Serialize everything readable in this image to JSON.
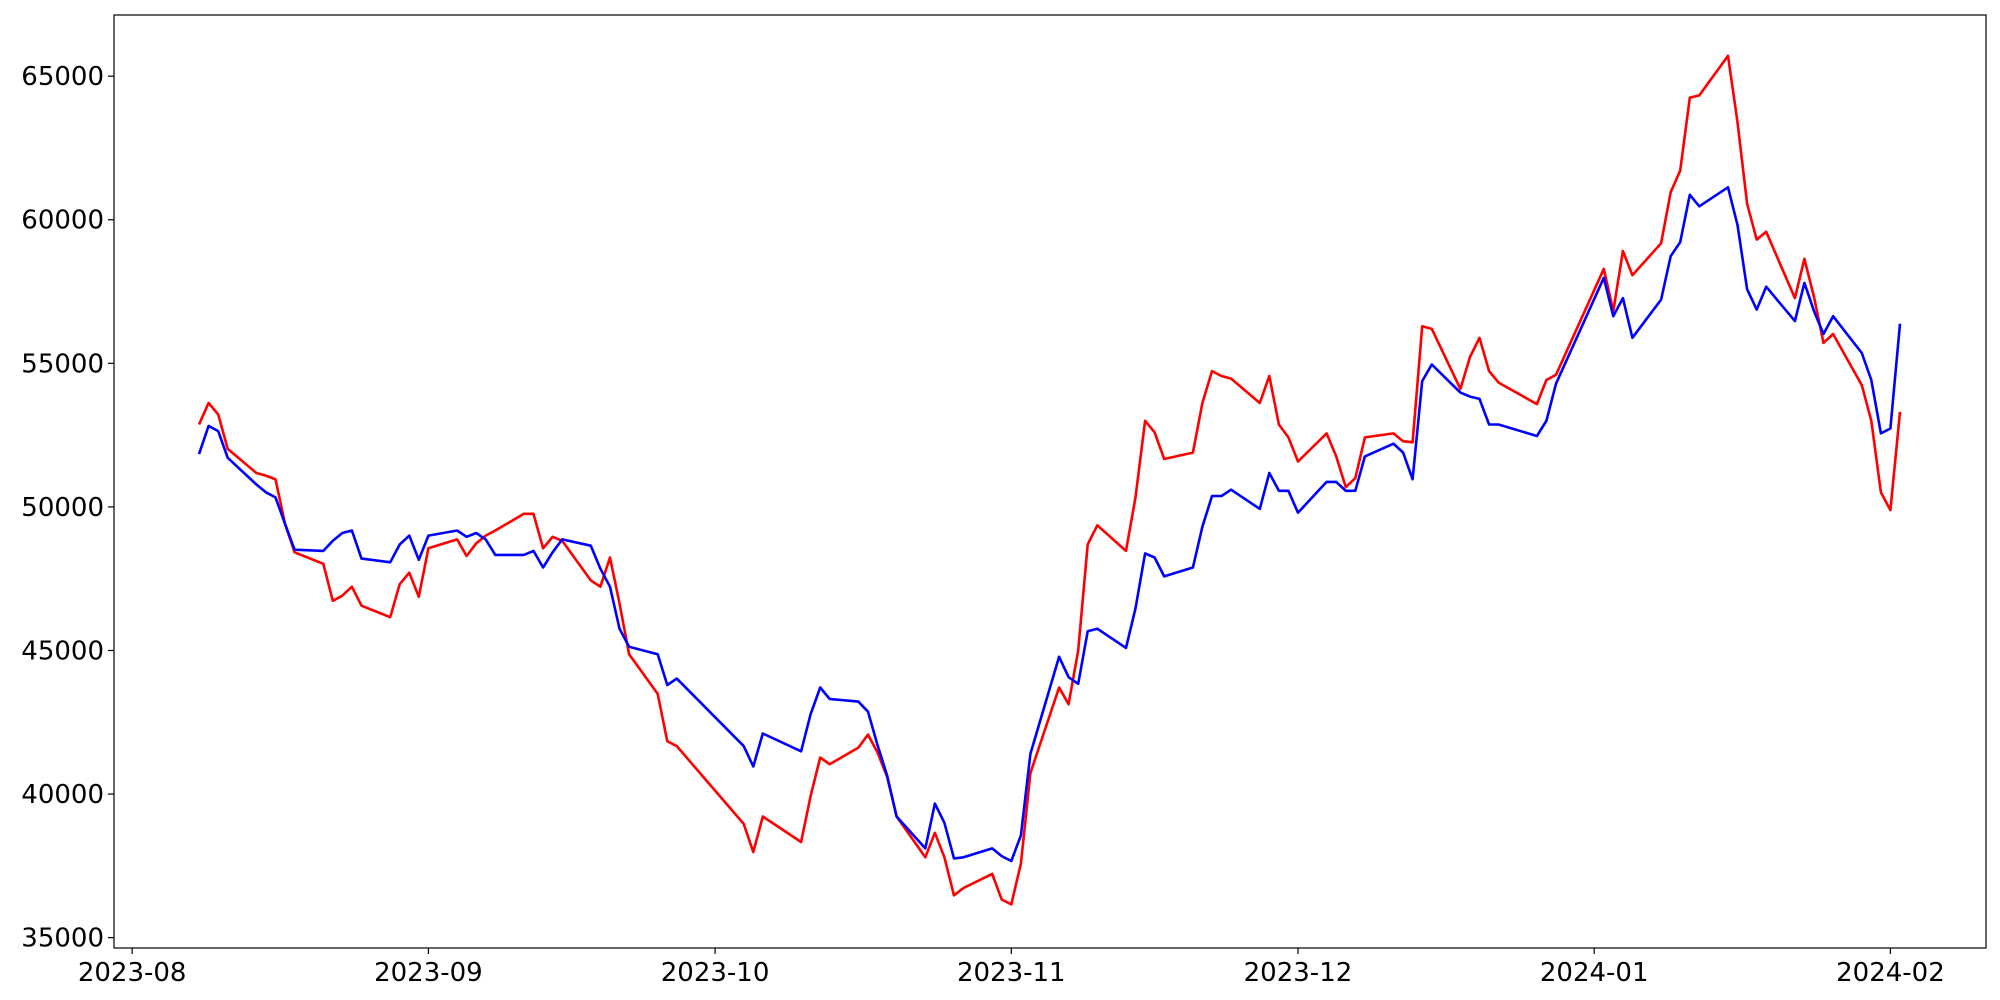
{
  "chart_data": {
    "type": "line",
    "x": [
      19577,
      19578,
      19579,
      19580,
      19583,
      19584,
      19585,
      19586,
      19587,
      19590,
      19591,
      19592,
      19593,
      19594,
      19597,
      19598,
      19599,
      19600,
      19601,
      19604,
      19605,
      19606,
      19607,
      19608,
      19611,
      19612,
      19613,
      19614,
      19615,
      19618,
      19619,
      19620,
      19621,
      19622,
      19625,
      19626,
      19627,
      19634,
      19635,
      19636,
      19640,
      19641,
      19642,
      19643,
      19646,
      19647,
      19648,
      19649,
      19650,
      19653,
      19654,
      19655,
      19656,
      19657,
      19660,
      19661,
      19662,
      19663,
      19664,
      19667,
      19668,
      19669,
      19670,
      19671,
      19674,
      19675,
      19676,
      19677,
      19678,
      19681,
      19682,
      19683,
      19684,
      19685,
      19688,
      19689,
      19690,
      19691,
      19692,
      19695,
      19696,
      19697,
      19698,
      19699,
      19702,
      19703,
      19704,
      19705,
      19706,
      19709,
      19710,
      19711,
      19712,
      19713,
      19717,
      19718,
      19719,
      19724,
      19725,
      19726,
      19727,
      19730,
      19731,
      19732,
      19733,
      19734,
      19737,
      19738,
      19739,
      19740,
      19741,
      19744,
      19745,
      19746,
      19747,
      19748,
      19751,
      19752,
      19753,
      19754,
      19755
    ],
    "series": [
      {
        "color": "#ff0000",
        "values": [
          52870,
          53620,
          53220,
          52020,
          51180,
          51090,
          50960,
          49400,
          48420,
          48020,
          46730,
          46910,
          47220,
          46560,
          46160,
          47310,
          47710,
          46870,
          48560,
          48870,
          48290,
          48730,
          49000,
          49180,
          49760,
          49760,
          48560,
          48960,
          48820,
          47440,
          47220,
          48240,
          46640,
          44870,
          43490,
          41840,
          41670,
          38960,
          37980,
          39220,
          38330,
          39930,
          41270,
          41040,
          41620,
          42070,
          41450,
          40600,
          39220,
          37800,
          38650,
          37800,
          36470,
          36730,
          37220,
          36330,
          36160,
          37580,
          40730,
          43710,
          43130,
          45000,
          48690,
          49360,
          48470,
          50330,
          53000,
          52600,
          51670,
          51890,
          53620,
          54730,
          54560,
          54470,
          53620,
          54560,
          52870,
          52420,
          51580,
          52560,
          51760,
          50690,
          51000,
          52420,
          52560,
          52290,
          52250,
          56290,
          56200,
          54110,
          55220,
          55890,
          54730,
          54330,
          53580,
          54420,
          54600,
          58290,
          56820,
          58910,
          58070,
          59180,
          60960,
          61710,
          64250,
          64330,
          65710,
          63400,
          60560,
          59310,
          59580,
          57270,
          58640,
          57310,
          55710,
          56020,
          54240,
          53000,
          50510,
          49890,
          53310
        ]
      },
      {
        "color": "#0000ff",
        "values": [
          51840,
          52820,
          52640,
          51710,
          50780,
          50510,
          50330,
          49400,
          48510,
          48470,
          48820,
          49090,
          49180,
          48200,
          48070,
          48690,
          49000,
          48160,
          49000,
          49180,
          48960,
          49090,
          48870,
          48330,
          48330,
          48470,
          47890,
          48420,
          48870,
          48650,
          47850,
          47220,
          45760,
          45130,
          44870,
          43800,
          44020,
          41670,
          40960,
          42110,
          41490,
          42780,
          43710,
          43310,
          43220,
          42870,
          41710,
          40650,
          39220,
          38110,
          39670,
          39000,
          37760,
          37800,
          38110,
          37840,
          37670,
          38560,
          41400,
          44780,
          44070,
          43840,
          45670,
          45760,
          45090,
          46470,
          48380,
          48240,
          47580,
          47890,
          49310,
          50380,
          50380,
          50600,
          49930,
          51180,
          50560,
          50560,
          49800,
          50870,
          50870,
          50560,
          50560,
          51760,
          52200,
          51890,
          50960,
          54380,
          54960,
          53980,
          53840,
          53760,
          52870,
          52870,
          52470,
          53000,
          54290,
          57980,
          56640,
          57270,
          55890,
          57220,
          58730,
          59220,
          60870,
          60470,
          61130,
          59820,
          57580,
          56870,
          57670,
          56470,
          57800,
          56820,
          56020,
          56640,
          55360,
          54420,
          52560,
          52730,
          56380
        ]
      }
    ],
    "xlim": [
      19568.1,
      19764.0
    ],
    "xticks": [
      {
        "value": 19570,
        "label": "2023-08"
      },
      {
        "value": 19601,
        "label": "2023-09"
      },
      {
        "value": 19631,
        "label": "2023-10"
      },
      {
        "value": 19662,
        "label": "2023-11"
      },
      {
        "value": 19692,
        "label": "2023-12"
      },
      {
        "value": 19723,
        "label": "2024-01"
      },
      {
        "value": 19754,
        "label": "2024-02"
      }
    ],
    "ylim": [
      34640,
      67130
    ],
    "yticks": [
      35000,
      40000,
      45000,
      50000,
      55000,
      60000,
      65000
    ],
    "grid": false
  }
}
